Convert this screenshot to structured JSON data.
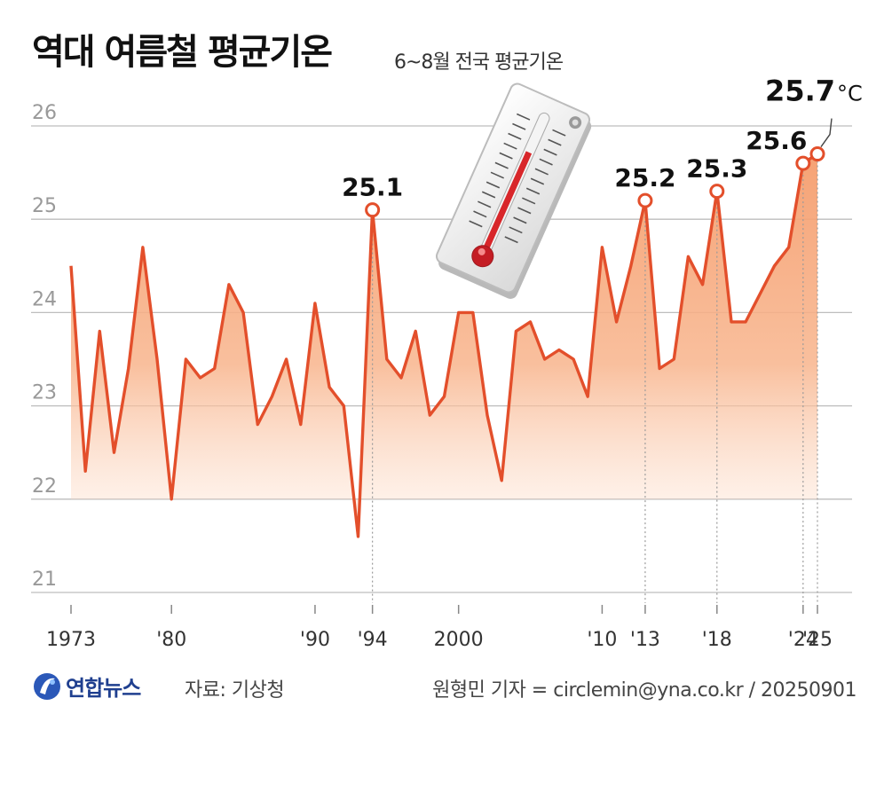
{
  "title": "역대 여름철 평균기온",
  "subtitle": "6~8월 전국 평균기온",
  "logo_text": "연합뉴스",
  "source": "자료: 기상청",
  "credit": "원형민 기자 = circlemin@yna.co.kr / 20250901",
  "colors": {
    "line": "#e34f2b",
    "fill": "#f6a57a",
    "grid": "#bdbdbd",
    "text": "#111111"
  },
  "icons": [
    "thermometer-icon",
    "yonhap-logo-icon"
  ],
  "chart_data": {
    "type": "area",
    "title": "역대 여름철 평균기온",
    "subtitle": "6~8월 전국 평균기온",
    "unit": "°C",
    "ylim": [
      21,
      26
    ],
    "yticks": [
      21,
      22,
      23,
      24,
      25,
      26
    ],
    "grid": true,
    "x": [
      1973,
      1974,
      1975,
      1976,
      1977,
      1978,
      1979,
      1980,
      1981,
      1982,
      1983,
      1984,
      1985,
      1986,
      1987,
      1988,
      1989,
      1990,
      1991,
      1992,
      1993,
      1994,
      1995,
      1996,
      1997,
      1998,
      1999,
      2000,
      2001,
      2002,
      2003,
      2004,
      2005,
      2006,
      2007,
      2008,
      2009,
      2010,
      2011,
      2012,
      2013,
      2014,
      2015,
      2016,
      2017,
      2018,
      2019,
      2020,
      2021,
      2022,
      2023,
      2024,
      2025
    ],
    "series": [
      {
        "values": [
          24.5,
          22.3,
          23.8,
          22.5,
          23.4,
          24.7,
          23.5,
          22.0,
          23.5,
          23.3,
          23.4,
          24.3,
          24.0,
          22.8,
          23.1,
          23.5,
          22.8,
          24.1,
          23.2,
          23.0,
          21.6,
          25.1,
          23.5,
          23.3,
          23.8,
          22.9,
          23.1,
          24.0,
          24.0,
          22.9,
          22.2,
          23.8,
          23.9,
          23.5,
          23.6,
          23.5,
          23.1,
          24.7,
          23.9,
          24.5,
          25.2,
          23.4,
          23.5,
          24.6,
          24.3,
          25.3,
          23.9,
          23.9,
          24.2,
          24.5,
          24.7,
          25.6,
          25.7
        ]
      }
    ],
    "xticks": [
      {
        "x": 1973,
        "label": "1973"
      },
      {
        "x": 1980,
        "label": "'80"
      },
      {
        "x": 1990,
        "label": "'90"
      },
      {
        "x": 1994,
        "label": "'94"
      },
      {
        "x": 2000,
        "label": "2000"
      },
      {
        "x": 2010,
        "label": "'10"
      },
      {
        "x": 2013,
        "label": "'13"
      },
      {
        "x": 2018,
        "label": "'18"
      },
      {
        "x": 2024,
        "label": "'24"
      },
      {
        "x": 2025,
        "label": "'25"
      }
    ],
    "annotations": [
      {
        "x": 1994,
        "y": 25.1,
        "label": "25.1"
      },
      {
        "x": 2013,
        "y": 25.2,
        "label": "25.2"
      },
      {
        "x": 2018,
        "y": 25.3,
        "label": "25.3"
      },
      {
        "x": 2024,
        "y": 25.6,
        "label": "25.6"
      },
      {
        "x": 2025,
        "y": 25.7,
        "label": "25.7",
        "unit": "°C"
      }
    ]
  }
}
